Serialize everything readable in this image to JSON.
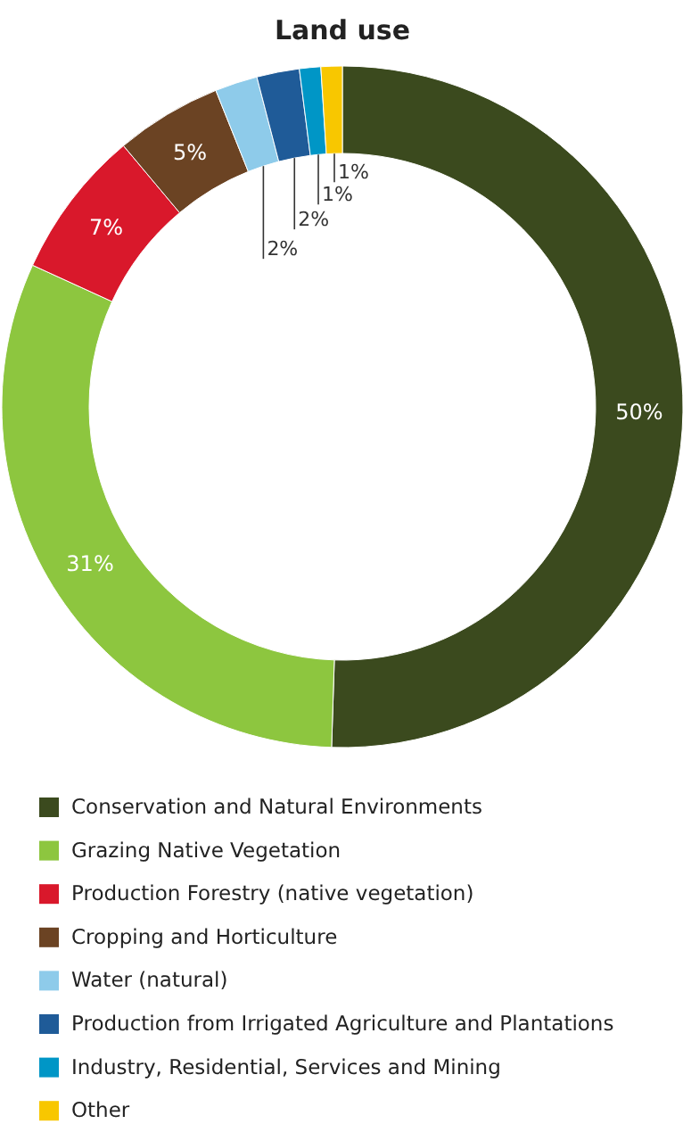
{
  "chart_data": {
    "type": "donut",
    "title": "Land use",
    "categories": [
      "Conservation and Natural Environments",
      "Grazing Native Vegetation",
      "Production Forestry (native vegetation)",
      "Cropping and Horticulture",
      "Water (natural)",
      "Production from Irrigated Agriculture and Plantations",
      "Industry, Residential, Services and Mining",
      "Other"
    ],
    "values": [
      50,
      31,
      7,
      5,
      2,
      2,
      1,
      1
    ],
    "colors": [
      "#3b4a1e",
      "#8dc63f",
      "#d9182b",
      "#6b4323",
      "#8ecbea",
      "#1f5b98",
      "#0096c6",
      "#f8c700"
    ],
    "value_labels": [
      "50%",
      "31%",
      "7%",
      "5%",
      "2%",
      "2%",
      "1%",
      "1%"
    ],
    "legend": "bottom"
  }
}
